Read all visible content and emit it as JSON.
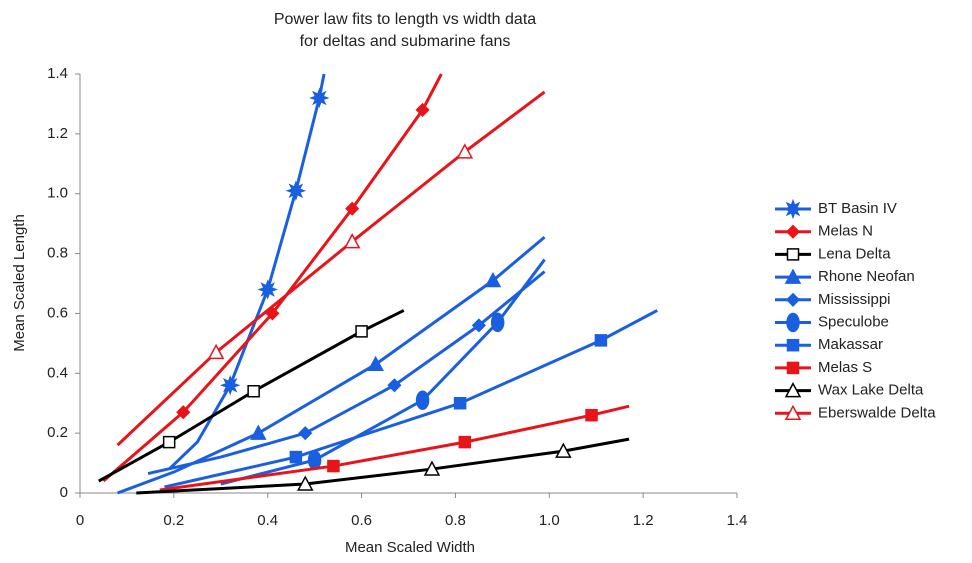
{
  "chart_data": {
    "type": "line",
    "title": [
      "Power law fits to length vs width data",
      "for deltas and submarine fans"
    ],
    "x_label": "Mean Scaled Width",
    "y_label": "Mean Scaled Length",
    "xlim": [
      0,
      1.4
    ],
    "ylim": [
      0,
      1.4
    ],
    "xticks": [
      0,
      0.2,
      0.4,
      0.6,
      0.8,
      {
        "value": 1,
        "label": "1.0"
      },
      1.2,
      1.4
    ],
    "yticks": [
      0,
      0.2,
      0.4,
      0.6,
      0.8,
      {
        "value": 1,
        "label": "1.0"
      },
      1.2,
      1.4
    ],
    "grid": false,
    "legend": "right",
    "series": [
      {
        "name": "BT Basin IV",
        "color": "#1a5fe0",
        "marker": "star",
        "open": false,
        "x": [
          0.32,
          0.4,
          0.46,
          0.51
        ],
        "values": [
          0.36,
          0.68,
          1.01,
          1.32
        ],
        "fit_x": [
          0.19,
          0.25,
          0.32,
          0.4,
          0.46,
          0.51,
          0.52
        ],
        "fit_values": [
          0.08,
          0.17,
          0.36,
          0.68,
          1.01,
          1.32,
          1.4
        ]
      },
      {
        "name": "Melas N",
        "color": "#e8141a",
        "marker": "diamond",
        "open": false,
        "x": [
          0.22,
          0.41,
          0.58,
          0.73
        ],
        "values": [
          0.27,
          0.6,
          0.95,
          1.28
        ],
        "fit_x": [
          0.05,
          0.22,
          0.41,
          0.58,
          0.73,
          0.77
        ],
        "fit_values": [
          0.04,
          0.27,
          0.6,
          0.95,
          1.28,
          1.4
        ]
      },
      {
        "name": "Lena Delta",
        "color": "#000000",
        "marker": "square",
        "open": true,
        "x": [
          0.19,
          0.37,
          0.6
        ],
        "values": [
          0.17,
          0.34,
          0.54
        ],
        "fit_x": [
          0.04,
          0.19,
          0.37,
          0.6,
          0.69
        ],
        "fit_values": [
          0.04,
          0.17,
          0.34,
          0.54,
          0.61
        ]
      },
      {
        "name": "Rhone Neofan",
        "color": "#1a5fe0",
        "marker": "triangle",
        "open": false,
        "x": [
          0.38,
          0.63,
          0.88
        ],
        "values": [
          0.2,
          0.43,
          0.71
        ],
        "fit_x": [
          0.08,
          0.2,
          0.38,
          0.63,
          0.88,
          0.99
        ],
        "fit_values": [
          0.0,
          0.07,
          0.2,
          0.43,
          0.71,
          0.855
        ]
      },
      {
        "name": "Mississippi",
        "color": "#1a5fe0",
        "marker": "diamond",
        "open": false,
        "x": [
          0.48,
          0.67,
          0.85
        ],
        "values": [
          0.2,
          0.36,
          0.56
        ],
        "fit_x": [
          0.145,
          0.3,
          0.48,
          0.67,
          0.85,
          0.99
        ],
        "fit_values": [
          0.065,
          0.12,
          0.2,
          0.36,
          0.56,
          0.74
        ]
      },
      {
        "name": "Speculobe",
        "color": "#1a5fe0",
        "marker": "ellipse",
        "open": false,
        "x": [
          0.5,
          0.73,
          0.89
        ],
        "values": [
          0.11,
          0.31,
          0.57
        ],
        "fit_x": [
          0.3,
          0.5,
          0.73,
          0.89,
          0.99
        ],
        "fit_values": [
          0.03,
          0.11,
          0.31,
          0.57,
          0.78
        ]
      },
      {
        "name": "Makassar",
        "color": "#1a5fe0",
        "marker": "square",
        "open": false,
        "x": [
          0.46,
          0.81,
          1.11
        ],
        "values": [
          0.12,
          0.3,
          0.51
        ],
        "fit_x": [
          0.18,
          0.46,
          0.81,
          1.11,
          1.23
        ],
        "fit_values": [
          0.02,
          0.12,
          0.3,
          0.51,
          0.61
        ]
      },
      {
        "name": "Melas S",
        "color": "#e8141a",
        "marker": "square",
        "open": false,
        "x": [
          0.54,
          0.82,
          1.09
        ],
        "values": [
          0.09,
          0.17,
          0.26
        ],
        "fit_x": [
          0.17,
          0.54,
          0.82,
          1.09,
          1.17
        ],
        "fit_values": [
          0.01,
          0.09,
          0.17,
          0.26,
          0.29
        ]
      },
      {
        "name": "Wax Lake Delta",
        "color": "#000000",
        "marker": "triangle",
        "open": true,
        "x": [
          0.48,
          0.75,
          1.03
        ],
        "values": [
          0.03,
          0.08,
          0.14
        ],
        "fit_x": [
          0.12,
          0.48,
          0.75,
          1.03,
          1.17
        ],
        "fit_values": [
          0.0,
          0.03,
          0.08,
          0.14,
          0.18
        ]
      },
      {
        "name": "Eberswalde Delta",
        "color": "#e8141a",
        "marker": "triangle",
        "open": true,
        "x": [
          0.29,
          0.58,
          0.82
        ],
        "values": [
          0.47,
          0.84,
          1.14
        ],
        "fit_x": [
          0.08,
          0.29,
          0.58,
          0.82,
          0.99
        ],
        "fit_values": [
          0.16,
          0.47,
          0.84,
          1.14,
          1.34
        ]
      }
    ]
  }
}
